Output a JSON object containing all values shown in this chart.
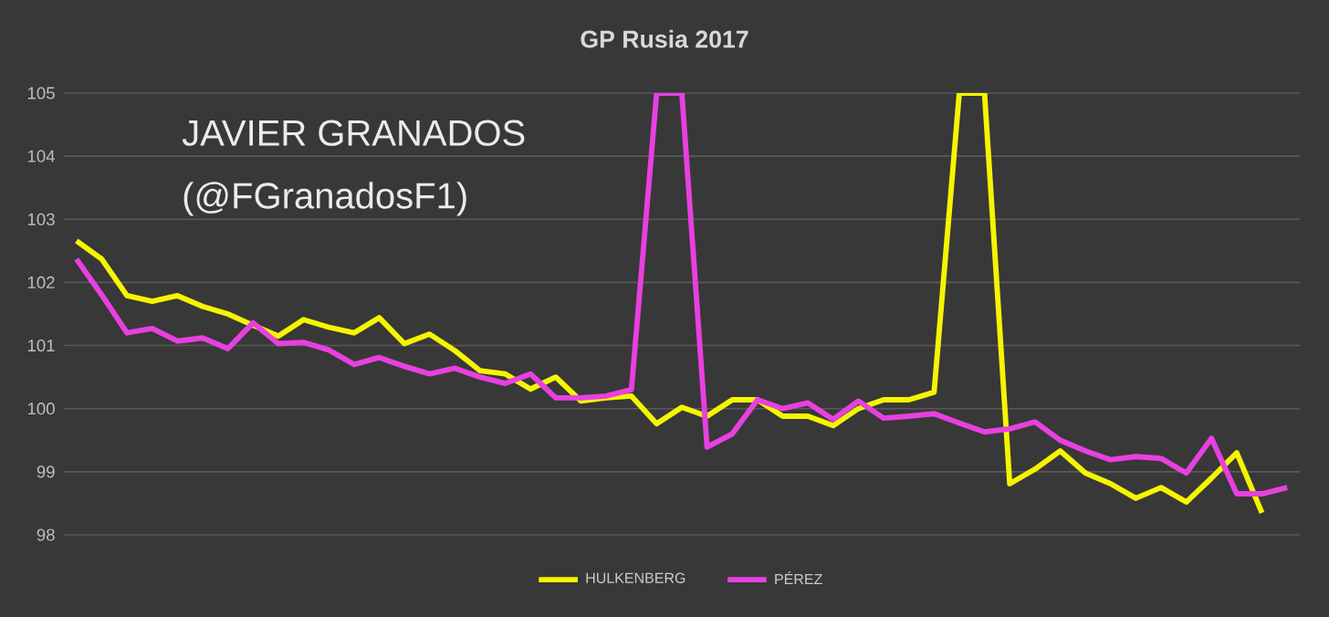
{
  "chart_data": {
    "type": "line",
    "title": "GP Rusia 2017",
    "annotations": [
      "JAVIER GRANADOS",
      "(@FGranadosF1)"
    ],
    "categories": [
      null,
      null,
      null,
      null,
      null,
      null,
      null,
      null,
      null,
      null,
      null,
      null,
      null,
      null,
      null,
      null,
      null,
      null,
      null,
      null,
      null,
      null,
      null,
      null,
      null,
      null,
      null,
      null,
      null,
      null,
      null,
      null,
      null,
      null,
      null,
      null,
      null,
      null,
      null,
      null,
      null,
      null,
      null,
      null,
      null,
      null,
      null,
      null,
      null
    ],
    "series": [
      {
        "name": "HULKENBERG",
        "color": "#f5f500",
        "values": [
          102.66,
          102.37,
          101.79,
          101.7,
          101.79,
          101.62,
          101.5,
          101.32,
          101.15,
          101.41,
          101.29,
          101.2,
          101.44,
          101.03,
          101.18,
          100.92,
          100.6,
          100.55,
          100.31,
          100.5,
          100.12,
          100.17,
          100.2,
          99.76,
          100.02,
          99.88,
          100.14,
          100.14,
          99.88,
          99.88,
          99.73,
          100.0,
          100.14,
          100.14,
          100.26,
          105,
          105,
          98.81,
          99.04,
          99.33,
          98.98,
          98.81,
          98.58,
          98.75,
          98.52,
          98.9,
          99.3,
          98.35,
          null
        ]
      },
      {
        "name": "PÉREZ",
        "color": "#e840e0",
        "values": [
          102.37,
          101.8,
          101.2,
          101.27,
          101.07,
          101.12,
          100.95,
          101.36,
          101.03,
          101.05,
          100.93,
          100.7,
          100.81,
          100.67,
          100.55,
          100.64,
          100.5,
          100.4,
          100.55,
          100.17,
          100.17,
          100.2,
          100.3,
          105,
          105,
          99.39,
          99.6,
          100.14,
          100.0,
          100.09,
          99.83,
          100.12,
          99.85,
          99.88,
          99.92,
          99.77,
          99.63,
          99.68,
          99.79,
          99.5,
          99.33,
          99.19,
          99.24,
          99.21,
          98.98,
          99.53,
          98.65,
          98.65,
          98.75
        ]
      }
    ],
    "ylim": [
      98,
      105
    ],
    "yticks": [
      98,
      99,
      100,
      101,
      102,
      103,
      104,
      105
    ],
    "grid": "y",
    "legend": "bottom",
    "tick_labels": "y",
    "marker": "none",
    "line_style": "solid"
  }
}
